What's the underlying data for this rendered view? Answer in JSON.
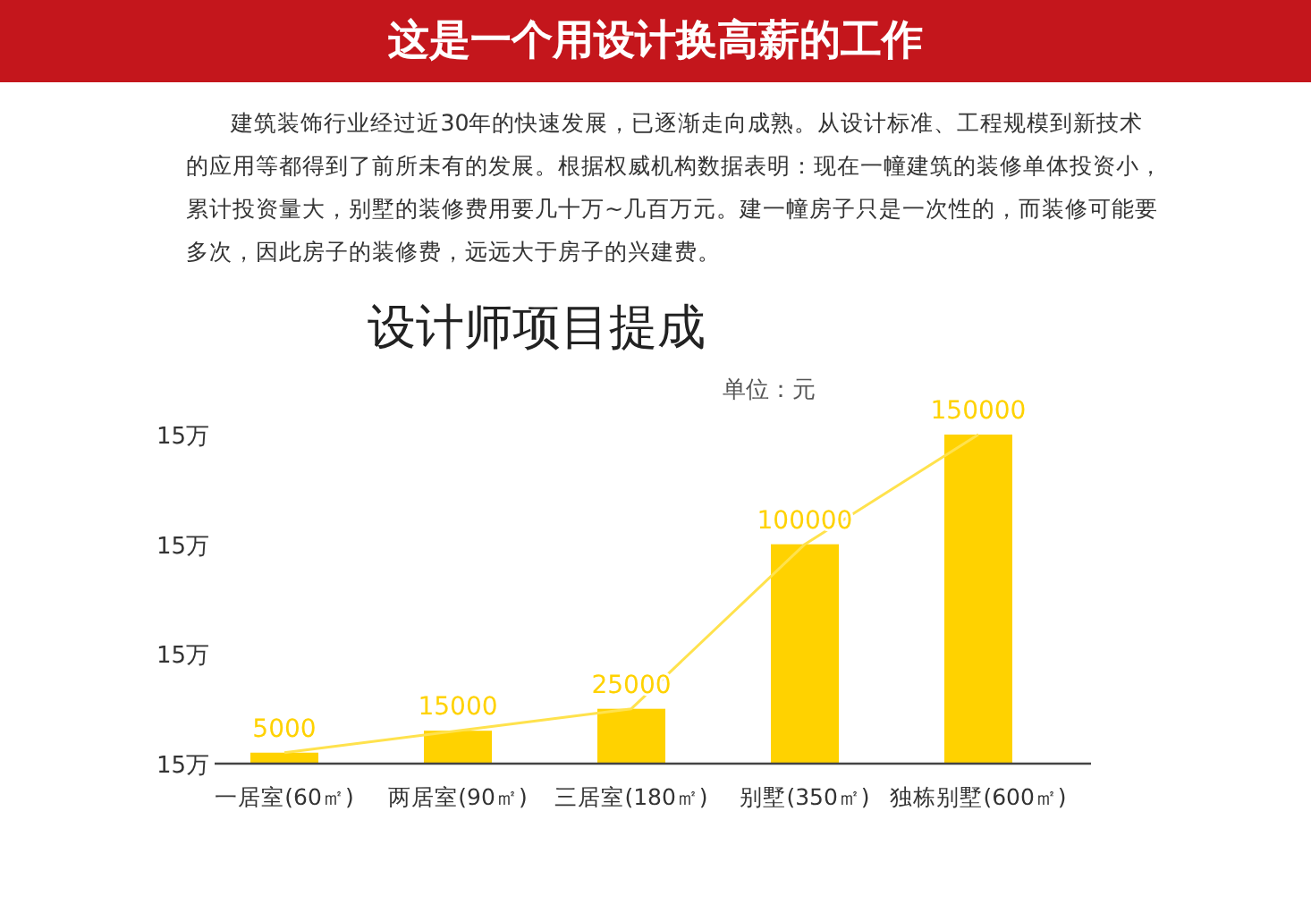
{
  "chart_data": {
    "type": "bar",
    "title": "设计师项目提成",
    "annotations": [
      "这是一个用设计换高薪的工作",
      "建筑装饰行业经过近30年的快速发展，已逐渐走向成熟。从设计标准、工程规模到新技术的应用等都得到了前所未有的发展。根据权威机构数据表明：现在一幢建筑的装修单体投资小，累计投资量大，别墅的装修费用要几十万~几百万元。建一幢房子只是一次性的，而装修可能要多次，因此房子的装修费，远远大于房子的兴建费。",
      "单位：元",
      "15万",
      "15万",
      "15万",
      "15万"
    ],
    "categories": [
      "一居室(60㎡)",
      "两居室(90㎡)",
      "三居室(180㎡)",
      "别墅(350㎡)",
      "独栋别墅(600㎡)"
    ],
    "series": [
      {
        "color": "#ffd200",
        "values": [
          5000,
          15000,
          25000,
          100000,
          150000
        ],
        "value_labels": [
          "5000",
          "15000",
          "25000",
          "100000",
          "150000"
        ]
      },
      {
        "type": "line",
        "color": "#ffe24d",
        "values": [
          5000,
          15000,
          25000,
          100000,
          150000
        ]
      }
    ],
    "ylim": [
      0,
      150000
    ]
  }
}
